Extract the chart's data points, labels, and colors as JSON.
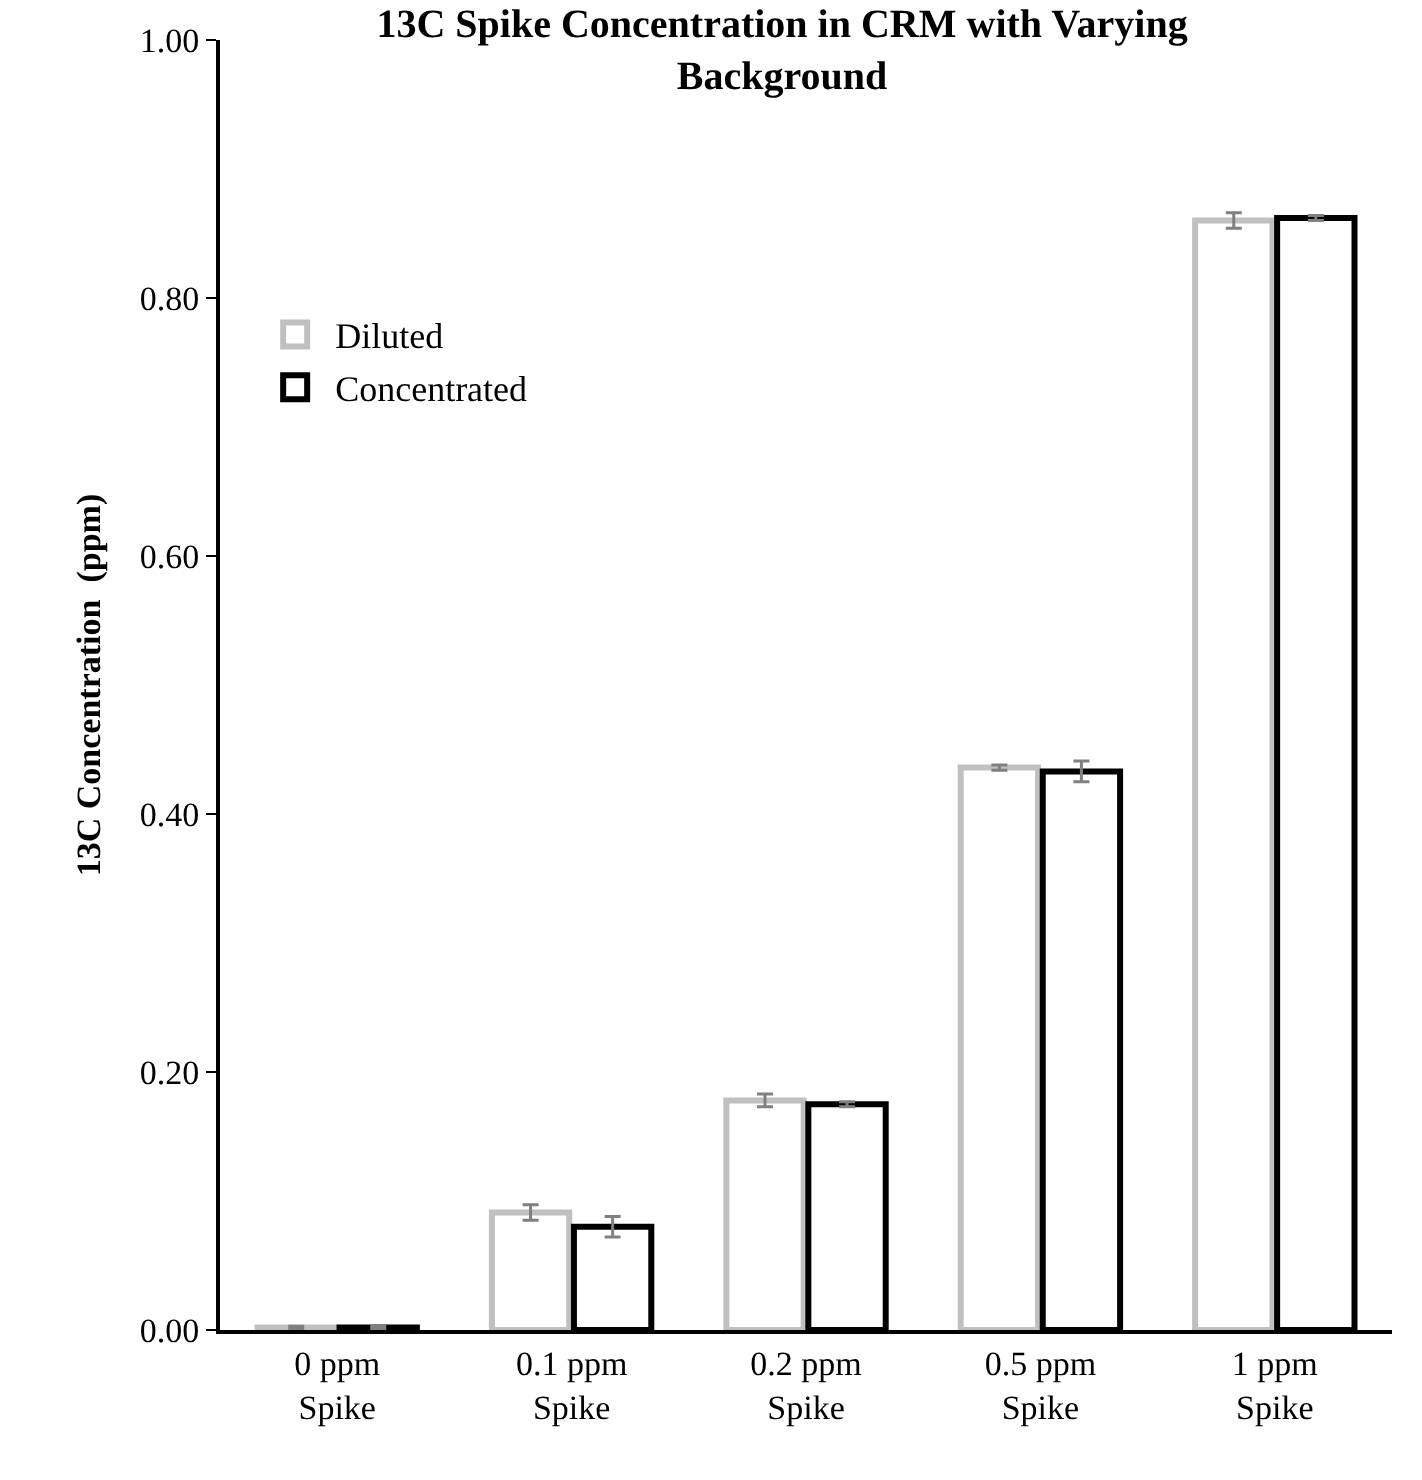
{
  "chart_data": {
    "type": "bar",
    "title": "13C Spike Concentration in CRM with Varying Background",
    "ylabel": "13C Concentration  (ppm)",
    "categories": [
      "0 ppm Spike",
      "0.1 ppm Spike",
      "0.2 ppm Spike",
      "0.5 ppm Spike",
      "1 ppm Spike"
    ],
    "series": [
      {
        "name": "Diluted",
        "color": "#c0c0c0",
        "values": [
          0.002,
          0.091,
          0.178,
          0.436,
          0.86
        ],
        "errors": [
          0.001,
          0.006,
          0.005,
          0.002,
          0.006
        ]
      },
      {
        "name": "Concentrated",
        "color": "#000000",
        "values": [
          0.002,
          0.08,
          0.175,
          0.433,
          0.862
        ],
        "errors": [
          0.001,
          0.008,
          0.002,
          0.008,
          0.002
        ]
      }
    ],
    "ylim": [
      0,
      1
    ],
    "yticks": [
      {
        "value": 0,
        "label": "0.00"
      },
      {
        "value": 0.2,
        "label": "0.20"
      },
      {
        "value": 0.4,
        "label": "0.40"
      },
      {
        "value": 0.6,
        "label": "0.60"
      },
      {
        "value": 0.8,
        "label": "0.80"
      },
      {
        "value": 1,
        "label": "1.00"
      }
    ],
    "legend": "top left"
  }
}
